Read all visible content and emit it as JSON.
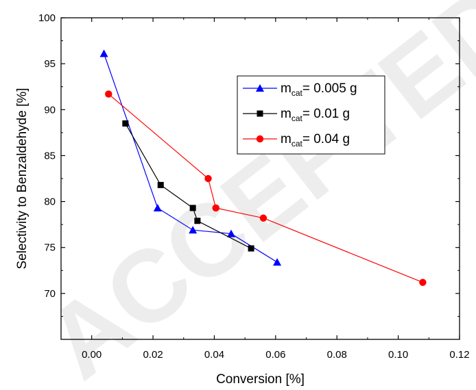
{
  "watermark": "ACCEPTED MANUSCRIPT",
  "chart_data": {
    "type": "line",
    "xlabel": "Conversion [%]",
    "ylabel": "Selectivity to Benzaldehyde [%]",
    "xlim": [
      -0.01,
      0.12
    ],
    "ylim": [
      65,
      100
    ],
    "x_ticks": [
      0.0,
      0.02,
      0.04,
      0.06,
      0.08,
      0.1,
      0.12
    ],
    "x_tick_labels": [
      "0.00",
      "0.02",
      "0.04",
      "0.06",
      "0.08",
      "0.10",
      "0.12"
    ],
    "y_ticks": [
      70,
      75,
      80,
      85,
      90,
      95,
      100
    ],
    "y_tick_labels": [
      "70",
      "75",
      "80",
      "85",
      "90",
      "95",
      "100"
    ],
    "grid": false,
    "legend_position": "top-right",
    "series": [
      {
        "name": "m_cat= 0.005 g",
        "label_main": "m",
        "label_sub": "cat",
        "label_rest": "= 0.005 g",
        "color": "#0000ff",
        "marker": "triangle",
        "x": [
          0.004,
          0.0215,
          0.033,
          0.0455,
          0.0605
        ],
        "y": [
          96.1,
          79.3,
          76.9,
          76.5,
          73.4
        ]
      },
      {
        "name": "m_cat= 0.01 g",
        "label_main": "m",
        "label_sub": "cat",
        "label_rest": "= 0.01 g",
        "color": "#000000",
        "marker": "square",
        "x": [
          0.011,
          0.0225,
          0.033,
          0.0345,
          0.052
        ],
        "y": [
          88.5,
          81.8,
          79.3,
          77.9,
          74.9
        ]
      },
      {
        "name": "m_cat= 0.04 g",
        "label_main": "m",
        "label_sub": "cat",
        "label_rest": "= 0.04 g",
        "color": "#ff0000",
        "marker": "circle",
        "x": [
          0.0055,
          0.038,
          0.0405,
          0.056,
          0.108
        ],
        "y": [
          91.7,
          82.5,
          79.3,
          78.2,
          71.2
        ]
      }
    ]
  }
}
